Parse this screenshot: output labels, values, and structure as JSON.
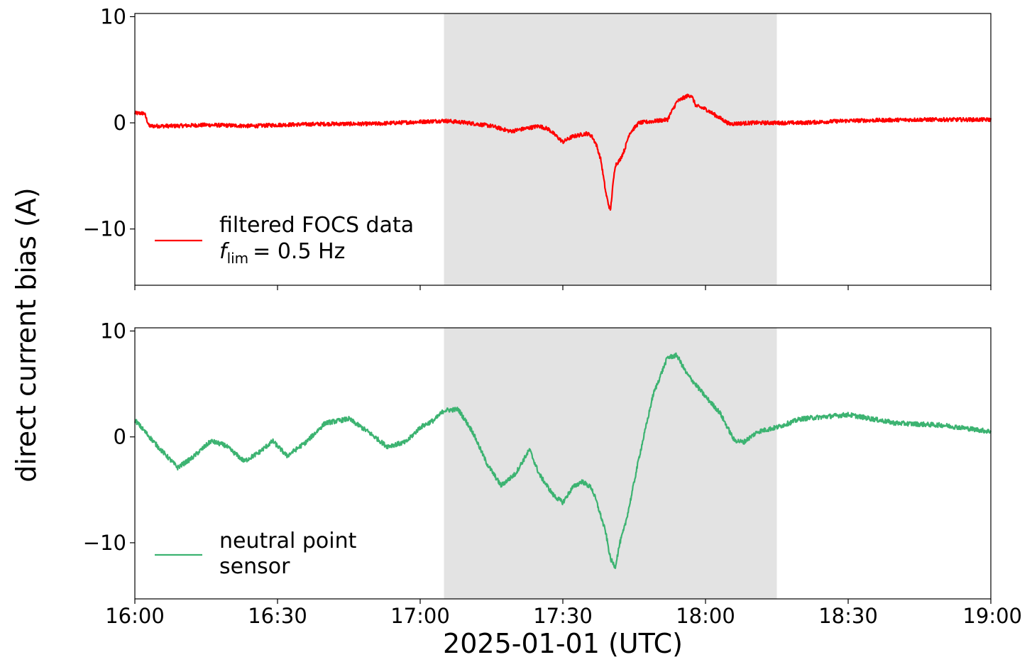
{
  "chart_data": {
    "type": "line",
    "xlabel": "2025-01-01 (UTC)",
    "ylabel": "direct current bias (A)",
    "x_ticks": [
      "16:00",
      "16:30",
      "17:00",
      "17:30",
      "18:00",
      "18:30",
      "19:00"
    ],
    "xlim": [
      "16:00",
      "19:00"
    ],
    "shaded_interval": [
      "17:05",
      "18:15"
    ],
    "shade_color": "#e3e3e3",
    "panels": [
      {
        "ylim": [
          -15.3,
          10.3
        ],
        "y_ticks": [
          10,
          0,
          -10
        ],
        "y_tick_labels": [
          "10",
          "0",
          "−10"
        ],
        "legend_position": "lower-left",
        "series": [
          {
            "name": "filtered FOCS data",
            "legend_line2_prefix": "f",
            "legend_line2_subscript": "lim",
            "legend_line2_suffix": "=  0.5 Hz",
            "color": "#ff0000",
            "noise": 0.18,
            "x": [
              "16:00",
              "16:01",
              "16:02",
              "16:03",
              "16:08",
              "16:15",
              "16:25",
              "16:30",
              "16:40",
              "16:50",
              "17:00",
              "17:05",
              "17:10",
              "17:15",
              "17:19",
              "17:25",
              "17:27",
              "17:30",
              "17:32",
              "17:35",
              "17:36",
              "17:37",
              "17:38",
              "17:39",
              "17:39.5",
              "17:40",
              "17:40.5",
              "17:41",
              "17:42",
              "17:43",
              "17:44",
              "17:46",
              "17:48",
              "17:52",
              "17:54",
              "17:56",
              "17:57",
              "17:58",
              "18:00",
              "18:05",
              "18:10",
              "18:20",
              "18:30",
              "18:45",
              "19:00"
            ],
            "y": [
              0.9,
              0.9,
              0.9,
              -0.3,
              -0.3,
              -0.2,
              -0.3,
              -0.2,
              -0.1,
              -0.1,
              0.1,
              0.2,
              0.0,
              -0.3,
              -0.8,
              -0.3,
              -0.6,
              -1.8,
              -1.3,
              -1.0,
              -1.2,
              -2.0,
              -3.5,
              -6.5,
              -7.5,
              -8.3,
              -6.0,
              -4.0,
              -3.5,
              -2.5,
              -1.0,
              0.0,
              0.1,
              0.3,
              2.0,
              2.5,
              2.6,
              1.6,
              1.3,
              -0.1,
              0.0,
              0.0,
              0.2,
              0.3,
              0.3
            ]
          }
        ]
      },
      {
        "ylim": [
          -15.3,
          10.3
        ],
        "y_ticks": [
          10,
          0,
          -10
        ],
        "y_tick_labels": [
          "10",
          "0",
          "−10"
        ],
        "legend_position": "lower-left",
        "series": [
          {
            "name": "neutral point sensor",
            "legend_lines": [
              "neutral point",
              "sensor"
            ],
            "color": "#3cb371",
            "noise": 0.22,
            "x": [
              "16:00",
              "16:05",
              "16:09",
              "16:12",
              "16:16",
              "16:19",
              "16:23",
              "16:26",
              "16:29",
              "16:32",
              "16:36",
              "16:40",
              "16:45",
              "16:49",
              "16:53",
              "16:57",
              "17:00",
              "17:03",
              "17:05",
              "17:08",
              "17:11",
              "17:14",
              "17:17",
              "17:20",
              "17:23",
              "17:25",
              "17:28",
              "17:30",
              "17:32",
              "17:34",
              "17:36",
              "17:37",
              "17:38",
              "17:39",
              "17:40",
              "17:41",
              "17:42",
              "17:43",
              "17:44",
              "17:46",
              "17:49",
              "17:52",
              "17:54",
              "17:56",
              "18:00",
              "18:03",
              "18:06",
              "18:08",
              "18:11",
              "18:15",
              "18:20",
              "18:30",
              "18:40",
              "18:50",
              "19:00"
            ],
            "y": [
              1.6,
              -1.0,
              -2.9,
              -2.0,
              -0.4,
              -0.8,
              -2.3,
              -1.5,
              -0.4,
              -1.8,
              -0.5,
              1.3,
              1.7,
              0.5,
              -0.9,
              -0.5,
              0.9,
              1.6,
              2.5,
              2.6,
              0.5,
              -2.5,
              -4.6,
              -3.5,
              -1.2,
              -3.5,
              -5.5,
              -6.2,
              -4.8,
              -4.2,
              -4.8,
              -6.0,
              -7.5,
              -9.0,
              -11.5,
              -12.3,
              -10.0,
              -8.5,
              -6.5,
              -2.0,
              4.0,
              7.5,
              7.7,
              6.0,
              3.8,
              2.3,
              -0.3,
              -0.5,
              0.5,
              0.9,
              1.7,
              2.1,
              1.3,
              1.1,
              0.5
            ]
          }
        ]
      }
    ]
  }
}
